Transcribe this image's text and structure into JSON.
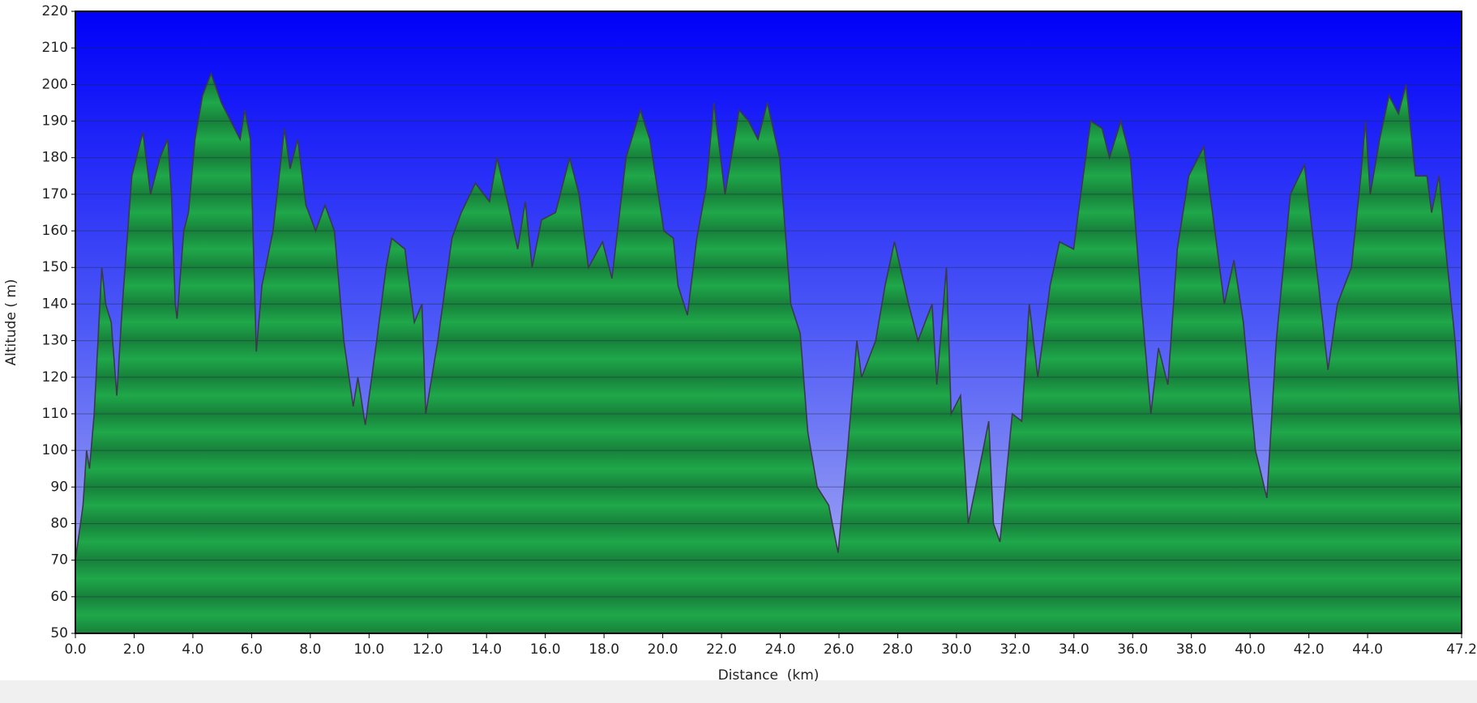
{
  "chart_data": {
    "type": "area",
    "xlabel": "Distance  (km)",
    "ylabel": "Altitude ( m)",
    "x": [
      0,
      0.26,
      0.38,
      0.48,
      0.64,
      0.9,
      1.03,
      1.22,
      1.41,
      1.6,
      1.92,
      2.3,
      2.56,
      2.88,
      3.14,
      3.27,
      3.4,
      3.46,
      3.69,
      3.85,
      4.07,
      4.33,
      4.62,
      4.97,
      5.29,
      5.61,
      5.77,
      5.96,
      6.16,
      6.35,
      6.73,
      7.12,
      7.31,
      7.57,
      7.85,
      8.18,
      8.5,
      8.82,
      9.14,
      9.46,
      9.62,
      9.87,
      10.26,
      10.58,
      10.77,
      11.22,
      11.54,
      11.8,
      11.93,
      12.34,
      12.82,
      13.14,
      13.62,
      14.1,
      14.36,
      14.74,
      15.06,
      15.32,
      15.55,
      15.87,
      16.35,
      16.83,
      17.15,
      17.47,
      17.95,
      18.27,
      18.75,
      19.24,
      19.56,
      20.04,
      20.36,
      20.52,
      20.84,
      21.16,
      21.48,
      21.74,
      22.12,
      22.6,
      22.92,
      23.24,
      23.56,
      23.98,
      24.36,
      24.68,
      24.94,
      25.26,
      25.65,
      25.97,
      26.29,
      26.61,
      26.77,
      27.25,
      27.57,
      27.89,
      28.37,
      28.69,
      29.17,
      29.33,
      29.66,
      29.82,
      30.14,
      30.4,
      30.78,
      31.1,
      31.26,
      31.48,
      31.9,
      32.22,
      32.48,
      32.77,
      33.19,
      33.51,
      33.99,
      34.15,
      34.57,
      34.96,
      35.21,
      35.6,
      35.92,
      36.3,
      36.62,
      36.88,
      37.2,
      37.52,
      37.91,
      38.42,
      38.8,
      39.12,
      39.45,
      39.77,
      40.18,
      40.57,
      40.89,
      41.37,
      41.85,
      42.33,
      42.65,
      42.97,
      43.45,
      43.77,
      43.93,
      44.09,
      44.41,
      44.73,
      45.05,
      45.31,
      45.63,
      46.02,
      46.18,
      46.43,
      46.66,
      46.98,
      47.2
    ],
    "values": [
      70,
      85,
      100,
      95,
      110,
      150,
      140,
      135,
      115,
      140,
      175,
      187,
      170,
      180,
      185,
      170,
      140,
      136,
      160,
      165,
      185,
      197,
      203,
      195,
      190,
      185,
      193,
      185,
      127,
      145,
      160,
      188,
      177,
      185,
      167,
      160,
      167,
      160,
      130,
      112,
      120,
      107,
      130,
      150,
      158,
      155,
      135,
      140,
      110,
      130,
      158,
      165,
      173,
      168,
      180,
      167,
      155,
      168,
      150,
      163,
      165,
      180,
      170,
      150,
      157,
      147,
      180,
      193,
      185,
      160,
      158,
      145,
      137,
      158,
      172,
      195,
      170,
      193,
      190,
      185,
      195,
      180,
      140,
      132,
      105,
      90,
      85,
      72,
      100,
      130,
      120,
      130,
      145,
      157,
      140,
      130,
      140,
      118,
      150,
      110,
      115,
      80,
      95,
      108,
      80,
      75,
      110,
      108,
      140,
      120,
      145,
      157,
      155,
      165,
      190,
      188,
      180,
      190,
      180,
      140,
      110,
      128,
      118,
      155,
      175,
      183,
      160,
      140,
      152,
      135,
      100,
      87,
      130,
      170,
      178,
      145,
      122,
      140,
      150,
      175,
      190,
      170,
      185,
      197,
      192,
      200,
      175,
      175,
      165,
      175,
      155,
      130,
      105
    ],
    "color": "#1fa84a",
    "line_color": "#3a3a4a",
    "xlim": [
      0,
      47.2
    ],
    "ylim": [
      50,
      220
    ],
    "xticks": [
      {
        "value": 0,
        "label": "0.0"
      },
      {
        "value": 2,
        "label": "2.0"
      },
      {
        "value": 4,
        "label": "4.0"
      },
      {
        "value": 6,
        "label": "6.0"
      },
      {
        "value": 8,
        "label": "8.0"
      },
      {
        "value": 10,
        "label": "10.0"
      },
      {
        "value": 12,
        "label": "12.0"
      },
      {
        "value": 14,
        "label": "14.0"
      },
      {
        "value": 16,
        "label": "16.0"
      },
      {
        "value": 18,
        "label": "18.0"
      },
      {
        "value": 20,
        "label": "20.0"
      },
      {
        "value": 22,
        "label": "22.0"
      },
      {
        "value": 24,
        "label": "24.0"
      },
      {
        "value": 26,
        "label": "26.0"
      },
      {
        "value": 28,
        "label": "28.0"
      },
      {
        "value": 30,
        "label": "30.0"
      },
      {
        "value": 32,
        "label": "32.0"
      },
      {
        "value": 34,
        "label": "34.0"
      },
      {
        "value": 36,
        "label": "36.0"
      },
      {
        "value": 38,
        "label": "38.0"
      },
      {
        "value": 40,
        "label": "40.0"
      },
      {
        "value": 42,
        "label": "42.0"
      },
      {
        "value": 44,
        "label": "44.0"
      },
      {
        "value": 47.2,
        "label": "47.2"
      }
    ],
    "yticks": [
      50,
      60,
      70,
      80,
      90,
      100,
      110,
      120,
      130,
      140,
      150,
      160,
      170,
      180,
      190,
      200,
      210,
      220
    ],
    "grid": true
  }
}
